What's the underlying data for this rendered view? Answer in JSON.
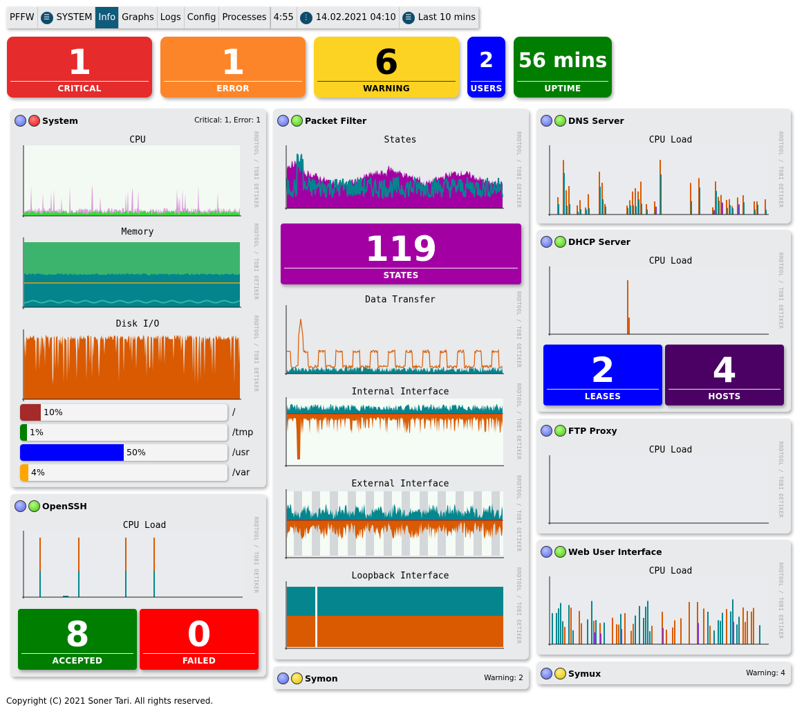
{
  "menu": {
    "app": "PFFW",
    "system": "SYSTEM",
    "tabs": [
      "Info",
      "Graphs",
      "Logs",
      "Config",
      "Processes"
    ],
    "active_tab": "Info",
    "uptime_short": "4:55",
    "datetime": "14.02.2021 04:10",
    "period": "Last 10 mins"
  },
  "tiles": {
    "critical": {
      "value": "1",
      "label": "CRITICAL",
      "color": "#e52b2b"
    },
    "error": {
      "value": "1",
      "label": "ERROR",
      "color": "#fd8529"
    },
    "warning": {
      "value": "6",
      "label": "WARNING",
      "color": "#fcd322"
    },
    "users": {
      "value": "2",
      "label": "USERS",
      "color": "#0000ff"
    },
    "uptime": {
      "value": "56 mins",
      "label": "UPTIME",
      "color": "#007e00"
    }
  },
  "system": {
    "title": "System",
    "status": "Critical: 1, Error: 1",
    "charts": {
      "cpu": "CPU",
      "memory": "Memory",
      "diskio": "Disk I/O"
    },
    "disks": [
      {
        "pct": "10%",
        "mount": "/",
        "value": 10,
        "color": "#a52a2a"
      },
      {
        "pct": "1%",
        "mount": "/tmp",
        "value": 1,
        "color": "#007e00"
      },
      {
        "pct": "50%",
        "mount": "/usr",
        "value": 50,
        "color": "#0000ff"
      },
      {
        "pct": "4%",
        "mount": "/var",
        "value": 4,
        "color": "#ffa500"
      }
    ]
  },
  "openssh": {
    "title": "OpenSSH",
    "chart": "CPU Load",
    "accepted": {
      "value": "8",
      "label": "ACCEPTED",
      "color": "#007e00"
    },
    "failed": {
      "value": "0",
      "label": "FAILED",
      "color": "#ff0000"
    }
  },
  "pf": {
    "title": "Packet Filter",
    "charts": {
      "states": "States",
      "transfer": "Data Transfer",
      "internal": "Internal Interface",
      "external": "External Interface",
      "loopback": "Loopback Interface"
    },
    "states": {
      "value": "119",
      "label": "STATES",
      "color": "#a300a3"
    }
  },
  "symon": {
    "title": "Symon",
    "status": "Warning: 2"
  },
  "dns": {
    "title": "DNS Server",
    "chart": "CPU Load"
  },
  "dhcp": {
    "title": "DHCP Server",
    "chart": "CPU Load",
    "leases": {
      "value": "2",
      "label": "LEASES",
      "color": "#0000ff"
    },
    "hosts": {
      "value": "4",
      "label": "HOSTS",
      "color": "#4b0063"
    }
  },
  "ftp": {
    "title": "FTP Proxy",
    "chart": "CPU Load"
  },
  "webui": {
    "title": "Web User Interface",
    "chart": "CPU Load"
  },
  "symux": {
    "title": "Symux",
    "status": "Warning: 4"
  },
  "rrd_credit": "RRDTOOL / TOBI OETIKER",
  "footer": "Copyright (C) 2021 Soner Tari. All rights reserved.",
  "icons": [
    "menu-icon",
    "clock-icon",
    "list-icon",
    "status-led-icon"
  ]
}
